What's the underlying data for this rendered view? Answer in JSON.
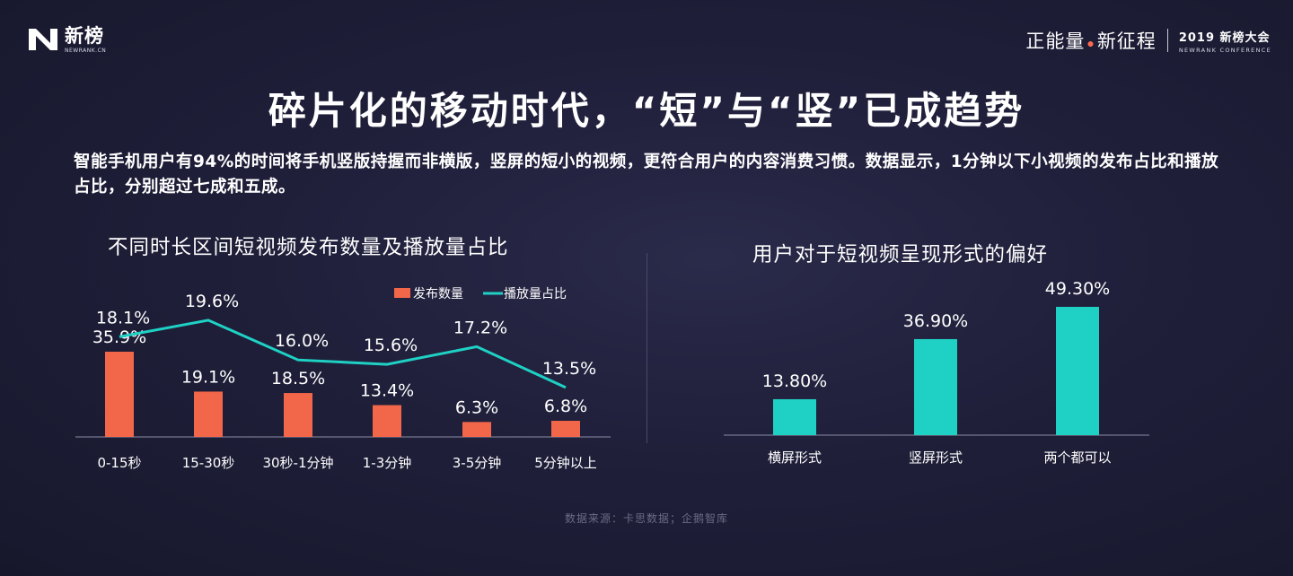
{
  "header": {
    "logo_name": "新榜",
    "logo_sub": "NEWRANK.CN",
    "slogan_left": "正能量",
    "slogan_right": "新征程",
    "event_name": "2019 新榜大会",
    "event_sub": "NEWRANK CONFERENCE"
  },
  "title": "碎片化的移动时代，“短”与“竖”已成趋势",
  "description": "智能手机用户有94%的时间将手机竖版持握而非横版，竖屏的短小的视频，更符合用户的内容消费习惯。数据显示，1分钟以下小视频的发布占比和播放占比，分别超过七成和五成。",
  "source": "数据来源：卡思数据；企鹅智库",
  "colors": {
    "orange": "#f26649",
    "teal": "#1fd1c4",
    "axis": "#8c8ca4"
  },
  "chart_data": [
    {
      "type": "bar",
      "title": "不同时长区间短视频发布数量及播放量占比",
      "categories": [
        "0-15秒",
        "15-30秒",
        "30秒-1分钟",
        "1-3分钟",
        "3-5分钟",
        "5分钟以上"
      ],
      "series": [
        {
          "name": "发布数量",
          "type": "bar",
          "values": [
            35.9,
            19.1,
            18.5,
            13.4,
            6.3,
            6.8
          ],
          "labels": [
            "35.9%",
            "19.1%",
            "18.5%",
            "13.4%",
            "6.3%",
            "6.8%"
          ]
        },
        {
          "name": "播放量占比",
          "type": "line",
          "values": [
            18.1,
            19.6,
            16.0,
            15.6,
            17.2,
            13.5
          ],
          "labels": [
            "18.1%",
            "19.6%",
            "16.0%",
            "15.6%",
            "17.2%",
            "13.5%"
          ]
        }
      ],
      "legend": "top-right",
      "grid": false
    },
    {
      "type": "bar",
      "title": "用户对于短视频呈现形式的偏好",
      "categories": [
        "横屏形式",
        "竖屏形式",
        "两个都可以"
      ],
      "values": [
        13.8,
        36.9,
        49.3
      ],
      "labels": [
        "13.80%",
        "36.90%",
        "49.30%"
      ],
      "grid": false
    }
  ]
}
